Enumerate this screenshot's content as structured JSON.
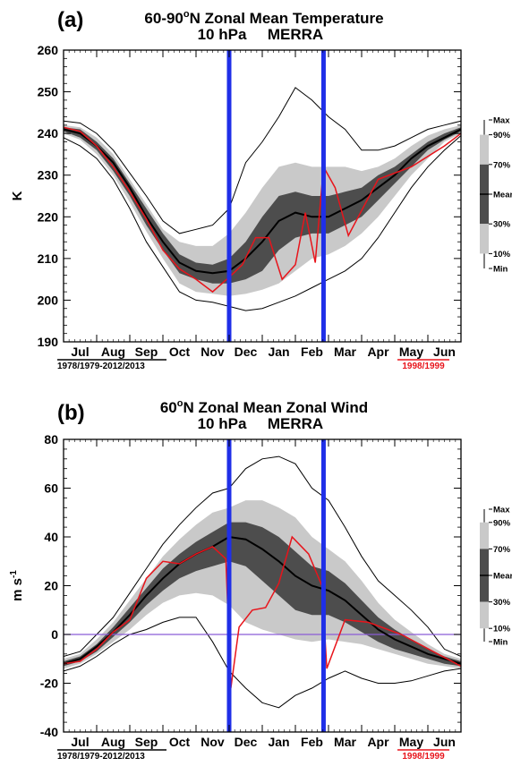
{
  "chart_data": [
    {
      "type": "line",
      "panel_label": "(a)",
      "title_line1": "60-90°N Zonal Mean Temperature",
      "title_line2_left": "10 hPa",
      "title_line2_right": "MERRA",
      "ylabel": "K",
      "ylim": [
        190,
        260
      ],
      "yticks": [
        "190",
        "200",
        "210",
        "220",
        "230",
        "240",
        "250",
        "260"
      ],
      "months": [
        "Jul",
        "Aug",
        "Sep",
        "Oct",
        "Nov",
        "Dec",
        "Jan",
        "Feb",
        "Mar",
        "Apr",
        "May",
        "Jun"
      ],
      "climatology_period": "1978/1979-2012/2013",
      "highlight_year": "1998/1999",
      "legend_labels": {
        "max": "Max",
        "p90": "90%",
        "p70": "70%",
        "mean": "Mean",
        "p30": "30%",
        "p10": "10%",
        "min": "Min"
      },
      "vertical_markers": [
        5.0,
        7.85
      ],
      "x": [
        0,
        0.5,
        1,
        1.5,
        2,
        2.5,
        3,
        3.5,
        4,
        4.5,
        5,
        5.5,
        6,
        6.5,
        7,
        7.5,
        8,
        8.5,
        9,
        9.5,
        10,
        10.5,
        11,
        11.5,
        12
      ],
      "mean": [
        241,
        240,
        237,
        233,
        227,
        220,
        214,
        209,
        207,
        206.5,
        207,
        210,
        214,
        219,
        221,
        220,
        220,
        222,
        224,
        227,
        230,
        234,
        237,
        239,
        241
      ],
      "p30": [
        240.5,
        239,
        236,
        231,
        225,
        218,
        212,
        206.5,
        205,
        204,
        204,
        205,
        207,
        212,
        215,
        216,
        216,
        218,
        220,
        224,
        228,
        232,
        236,
        238.5,
        240.5
      ],
      "p70": [
        241.5,
        241,
        238,
        234,
        228,
        222,
        216,
        211,
        209,
        208.5,
        210,
        214,
        220,
        225,
        226,
        225,
        225,
        226,
        227,
        230,
        232,
        235,
        238,
        240,
        241.5
      ],
      "p10": [
        240,
        238.5,
        235,
        230,
        223.5,
        216.5,
        210,
        204,
        202,
        201.5,
        201,
        201.5,
        202.5,
        204,
        207,
        210,
        211,
        213,
        216,
        220,
        225,
        230,
        234,
        238,
        240
      ],
      "p90": [
        242,
        241.5,
        239,
        235,
        229,
        223,
        217,
        214,
        213,
        213,
        216,
        221,
        227,
        232,
        233,
        232,
        232,
        232,
        231,
        232,
        234,
        237,
        239.5,
        241,
        242
      ],
      "min": [
        239,
        237,
        234,
        229,
        222,
        214,
        208,
        202,
        200,
        199.5,
        198.5,
        197.5,
        198,
        199.5,
        201,
        203,
        205,
        207,
        210,
        215,
        221,
        227,
        232,
        236,
        239.5
      ],
      "max": [
        243,
        242.5,
        240,
        236,
        230.5,
        225,
        219,
        216,
        217,
        218,
        222,
        233,
        238,
        244,
        251,
        248,
        244,
        241,
        236,
        236,
        237,
        239,
        241,
        242,
        243
      ],
      "year": [
        241.5,
        240.5,
        237,
        232,
        226,
        219.5,
        212,
        207.5,
        205,
        202,
        205.5,
        208.5,
        215,
        215,
        205,
        208.5,
        221,
        209,
        232,
        227,
        215.5,
        229,
        232,
        237,
        240
      ],
      "year_x": [
        0,
        0.5,
        1,
        1.5,
        2,
        2.5,
        3,
        3.5,
        4,
        4.5,
        5,
        5.4,
        5.8,
        6.2,
        6.6,
        7.0,
        7.3,
        7.6,
        7.85,
        8.2,
        8.6,
        9.5,
        10.5,
        11.5,
        12
      ]
    },
    {
      "type": "line",
      "panel_label": "(b)",
      "title_line1": "60°N Zonal Mean Zonal Wind",
      "title_line2_left": "10 hPa",
      "title_line2_right": "MERRA",
      "ylabel": "m s-1",
      "ylim": [
        -40,
        80
      ],
      "yticks": [
        "-40",
        "-20",
        "0",
        "20",
        "40",
        "60",
        "80"
      ],
      "months": [
        "Jul",
        "Aug",
        "Sep",
        "Oct",
        "Nov",
        "Dec",
        "Jan",
        "Feb",
        "Mar",
        "Apr",
        "May",
        "Jun"
      ],
      "climatology_period": "1978/1979-2012/2013",
      "highlight_year": "1998/1999",
      "legend_labels": {
        "max": "Max",
        "p90": "90%",
        "p70": "70%",
        "mean": "Mean",
        "p30": "30%",
        "p10": "10%",
        "min": "Min"
      },
      "vertical_markers": [
        5.0,
        7.85
      ],
      "zero_line": 0,
      "x": [
        0,
        0.5,
        1,
        1.5,
        2,
        2.5,
        3,
        3.5,
        4,
        4.5,
        5,
        5.5,
        6,
        6.5,
        7,
        7.5,
        8,
        8.5,
        9,
        9.5,
        10,
        10.5,
        11,
        11.5,
        12
      ],
      "mean": [
        -12,
        -10,
        -5,
        1,
        8,
        16,
        23,
        29,
        33,
        36,
        40,
        39,
        35,
        30,
        24,
        20,
        18,
        14,
        8,
        2,
        -2,
        -5,
        -8,
        -10,
        -12
      ],
      "p30": [
        -13,
        -11,
        -7,
        -1,
        5,
        12,
        18,
        23,
        26,
        28,
        30,
        28,
        22,
        16,
        10,
        8,
        8,
        5,
        1,
        -3,
        -6,
        -8,
        -10,
        -12,
        -13
      ],
      "p70": [
        -11,
        -9,
        -4,
        3,
        11,
        19,
        27,
        33,
        38,
        42,
        46,
        46,
        44,
        40,
        34,
        28,
        26,
        21,
        14,
        7,
        2,
        -2,
        -6,
        -9,
        -11
      ],
      "p10": [
        -14,
        -12,
        -8,
        -3,
        2,
        8,
        13,
        16,
        17,
        16,
        12,
        5,
        2,
        0,
        -2,
        -3,
        -2,
        -3,
        -4,
        -6,
        -8,
        -10,
        -12,
        -13,
        -14
      ],
      "p90": [
        -10,
        -8,
        -2,
        5,
        14,
        23,
        32,
        39,
        45,
        50,
        52,
        55,
        55,
        52,
        48,
        40,
        35,
        30,
        22,
        13,
        6,
        1,
        -4,
        -8,
        -10
      ],
      "min": [
        -15,
        -13,
        -9,
        -4,
        0,
        2,
        5,
        7,
        7,
        -3,
        -15,
        -22,
        -28,
        -30,
        -25,
        -22,
        -18,
        -15,
        -18,
        -20,
        -20,
        -19,
        -17,
        -15,
        -14
      ],
      "max": [
        -9,
        -7,
        0,
        7,
        17,
        27,
        37,
        45,
        52,
        58,
        60,
        68,
        72,
        73,
        70,
        60,
        55,
        44,
        32,
        22,
        16,
        10,
        3,
        -6,
        -9
      ],
      "year": [
        -12,
        -11,
        -6,
        1,
        6,
        23,
        30,
        29,
        33,
        36,
        31,
        -22,
        3,
        10,
        11,
        21,
        40,
        33,
        20,
        -14,
        6,
        5,
        0,
        -8,
        -13
      ],
      "year_x": [
        0,
        0.5,
        1,
        1.5,
        2,
        2.5,
        3,
        3.5,
        4,
        4.5,
        4.9,
        5.05,
        5.3,
        5.7,
        6.1,
        6.5,
        6.9,
        7.4,
        7.8,
        7.95,
        8.5,
        9.2,
        10.2,
        11.3,
        12
      ]
    }
  ]
}
